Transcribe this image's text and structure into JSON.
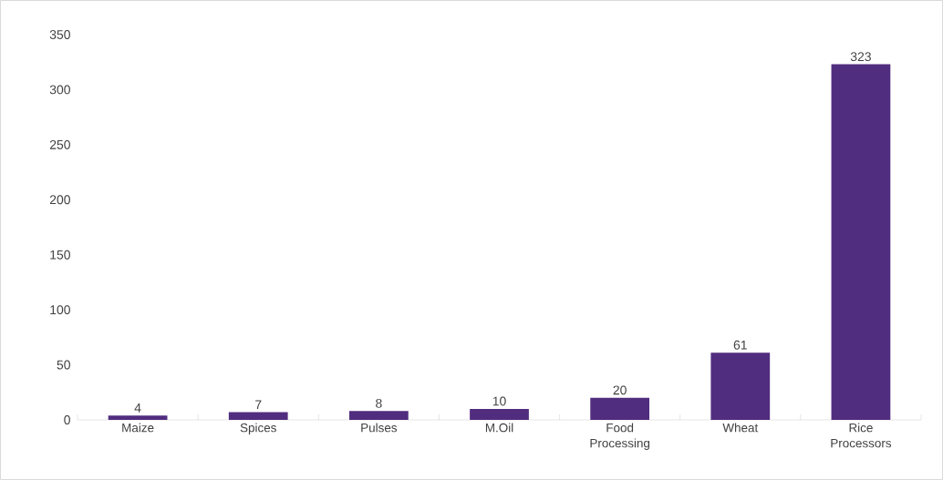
{
  "chart_data": {
    "type": "bar",
    "categories": [
      "Maize",
      "Spices",
      "Pulses",
      "M.Oil",
      "Food Processing",
      "Wheat",
      "Rice Processors"
    ],
    "values": [
      4,
      7,
      8,
      10,
      20,
      61,
      323
    ],
    "color": "#512d7f",
    "ylim": [
      0,
      350
    ],
    "yticks": [
      0,
      50,
      100,
      150,
      200,
      250,
      300,
      350
    ],
    "data_labels": true
  }
}
